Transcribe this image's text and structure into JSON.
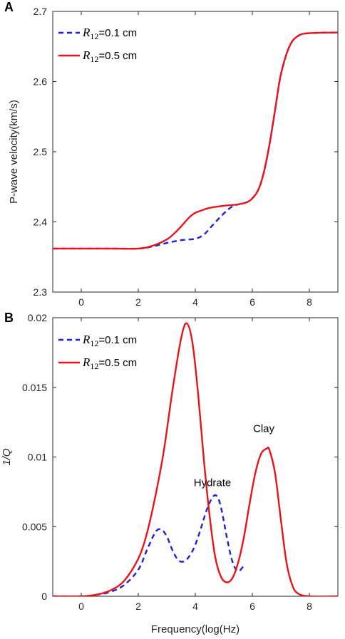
{
  "chart_data": [
    {
      "type": "line",
      "panel_label": "A",
      "xlabel": "",
      "ylabel": "P-wave velocity(km/s)",
      "xlim": [
        -1,
        9
      ],
      "ylim": [
        2.3,
        2.7
      ],
      "xticks": [
        "0",
        "2",
        "4",
        "6",
        "8"
      ],
      "yticks": [
        "2.3",
        "2.4",
        "2.5",
        "2.6",
        "2.7"
      ],
      "legend_position": "top-left",
      "series": [
        {
          "legend_symbol": "R",
          "legend_subscript": "12",
          "legend_value": "=0.1 cm",
          "color": "#1f1fd6",
          "style": "dashed",
          "x": [
            -1,
            0,
            1,
            2,
            2.5,
            3,
            3.5,
            4,
            4.3,
            4.6,
            5,
            5.3,
            5.6,
            5.9,
            6.2,
            6.4,
            6.6,
            6.8,
            7,
            7.3,
            7.6,
            8,
            9
          ],
          "y": [
            2.362,
            2.362,
            2.362,
            2.362,
            2.365,
            2.37,
            2.374,
            2.376,
            2.382,
            2.395,
            2.412,
            2.422,
            2.426,
            2.43,
            2.445,
            2.47,
            2.51,
            2.56,
            2.61,
            2.65,
            2.665,
            2.669,
            2.67
          ]
        },
        {
          "legend_symbol": "R",
          "legend_subscript": "12",
          "legend_value": "=0.5 cm",
          "color": "#e8141b",
          "style": "solid",
          "x": [
            -1,
            0,
            1,
            2,
            2.5,
            3,
            3.3,
            3.6,
            3.8,
            4,
            4.2,
            4.5,
            5,
            5.5,
            5.9,
            6.2,
            6.4,
            6.6,
            6.8,
            7,
            7.3,
            7.6,
            8,
            9
          ],
          "y": [
            2.362,
            2.362,
            2.362,
            2.362,
            2.366,
            2.375,
            2.385,
            2.398,
            2.407,
            2.413,
            2.416,
            2.42,
            2.423,
            2.425,
            2.43,
            2.445,
            2.47,
            2.51,
            2.56,
            2.61,
            2.65,
            2.665,
            2.669,
            2.67
          ]
        }
      ]
    },
    {
      "type": "line",
      "panel_label": "B",
      "xlabel": "Frequency(log(Hz)",
      "ylabel": "1/Q",
      "xlim": [
        -1,
        9
      ],
      "ylim": [
        0,
        0.02
      ],
      "xticks": [
        "0",
        "2",
        "4",
        "6",
        "8"
      ],
      "yticks": [
        "0",
        "0.005",
        "0.01",
        "0.015",
        "0.02"
      ],
      "legend_position": "top-left",
      "annotations": [
        {
          "text": "Hydrate",
          "x": 4.6,
          "y": 0.0079
        },
        {
          "text": "Clay",
          "x": 6.4,
          "y": 0.0118
        }
      ],
      "series": [
        {
          "legend_symbol": "R",
          "legend_subscript": "12",
          "legend_value": "=0.1 cm",
          "color": "#1f1fd6",
          "style": "dashed",
          "x": [
            -1,
            0,
            0.5,
            1,
            1.5,
            2,
            2.3,
            2.6,
            2.8,
            3,
            3.2,
            3.4,
            3.6,
            3.8,
            4,
            4.2,
            4.4,
            4.6,
            4.75,
            4.9,
            5.1,
            5.3,
            5.5,
            5.7
          ],
          "y": [
            0,
            0,
            0.0001,
            0.0003,
            0.0008,
            0.0019,
            0.0033,
            0.0046,
            0.0048,
            0.0043,
            0.0033,
            0.0026,
            0.0025,
            0.0029,
            0.0037,
            0.0049,
            0.0062,
            0.0071,
            0.0072,
            0.0064,
            0.0043,
            0.0025,
            0.0018,
            0.0022
          ]
        },
        {
          "legend_symbol": "R",
          "legend_subscript": "12",
          "legend_value": "=0.5 cm",
          "color": "#e8141b",
          "style": "solid",
          "x": [
            -1,
            0,
            0.5,
            1,
            1.5,
            2,
            2.3,
            2.6,
            2.9,
            3.2,
            3.5,
            3.7,
            3.9,
            4.1,
            4.3,
            4.5,
            4.7,
            4.9,
            5.1,
            5.3,
            5.5,
            5.7,
            5.9,
            6.1,
            6.3,
            6.5,
            6.6,
            6.8,
            7,
            7.2,
            7.4,
            7.6,
            8,
            9
          ],
          "y": [
            0,
            0,
            0.0001,
            0.0004,
            0.0011,
            0.0027,
            0.0045,
            0.0072,
            0.0105,
            0.0148,
            0.0185,
            0.0196,
            0.0182,
            0.0145,
            0.0098,
            0.0058,
            0.0028,
            0.0014,
            0.001,
            0.0013,
            0.0024,
            0.0042,
            0.0066,
            0.0088,
            0.0102,
            0.0106,
            0.0105,
            0.0088,
            0.0055,
            0.0024,
            0.0008,
            0.0002,
            0,
            0
          ]
        }
      ]
    }
  ]
}
